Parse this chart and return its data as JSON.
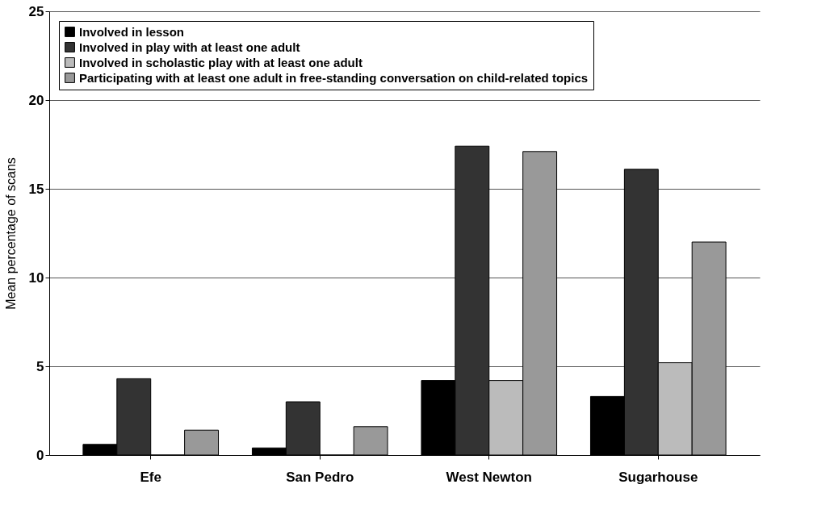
{
  "chart_data": {
    "type": "bar",
    "ylabel": "Mean percentage of scans",
    "categories": [
      "Efe",
      "San Pedro",
      "West Newton",
      "Sugarhouse"
    ],
    "series": [
      {
        "name": "Involved in lesson",
        "color": "#000000",
        "values": [
          0.6,
          0.4,
          4.2,
          3.3
        ]
      },
      {
        "name": "Involved in play with at least one adult",
        "color": "#333333",
        "values": [
          4.3,
          3.0,
          17.4,
          16.1
        ]
      },
      {
        "name": "Involved in scholastic play with at least one adult",
        "color": "#bbbbbb",
        "values": [
          0,
          0,
          4.2,
          5.2
        ]
      },
      {
        "name": "Participating with at least one adult in free-standing conversation on child-related topics",
        "color": "#999999",
        "values": [
          1.4,
          1.6,
          17.1,
          12.0
        ]
      }
    ],
    "ylim": [
      0,
      25
    ],
    "yticks": [
      0,
      5,
      10,
      15,
      20,
      25
    ],
    "grid": "y",
    "legend": "top left"
  }
}
